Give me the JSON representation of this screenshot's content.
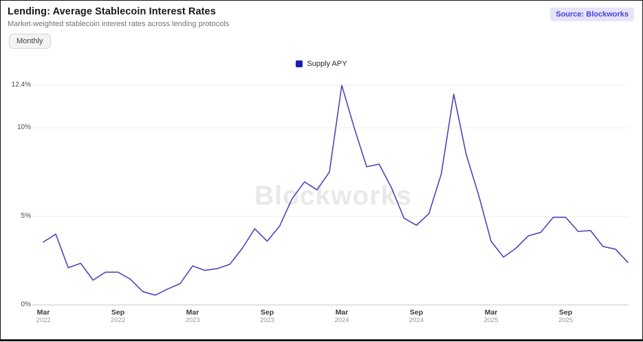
{
  "header": {
    "title": "Lending: Average Stablecoin Interest Rates",
    "subtitle": "Market-weighted stablecoin interest rates across lending protocols",
    "frequency_button": "Monthly",
    "source_badge": "Source: Blockworks"
  },
  "legend": {
    "label": "Supply APY",
    "swatch_color": "#201cb5"
  },
  "watermark": "Blockworks",
  "chart_data": {
    "type": "line",
    "title": "Lending: Average Stablecoin Interest Rates",
    "xlabel": "",
    "ylabel": "",
    "grid": "horizontal",
    "legend_position": "top-center",
    "line_color": "#4c43bd",
    "ylim": [
      0,
      12.4
    ],
    "y_ticks": [
      0,
      5,
      10,
      12.4
    ],
    "y_tick_labels": [
      "0%",
      "5%",
      "10%",
      "12.4%"
    ],
    "x": [
      "Mar 2022",
      "Apr 2022",
      "May 2022",
      "Jun 2022",
      "Jul 2022",
      "Aug 2022",
      "Sep 2022",
      "Oct 2022",
      "Nov 2022",
      "Dec 2022",
      "Jan 2023",
      "Feb 2023",
      "Mar 2023",
      "Apr 2023",
      "May 2023",
      "Jun 2023",
      "Jul 2023",
      "Aug 2023",
      "Sep 2023",
      "Oct 2023",
      "Nov 2023",
      "Dec 2023",
      "Jan 2024",
      "Feb 2024",
      "Mar 2024",
      "Apr 2024",
      "May 2024",
      "Jun 2024",
      "Jul 2024",
      "Aug 2024",
      "Sep 2024",
      "Oct 2024",
      "Nov 2024",
      "Dec 2024",
      "Jan 2025",
      "Feb 2025",
      "Mar 2025",
      "Apr 2025",
      "May 2025",
      "Jun 2025",
      "Jul 2025",
      "Aug 2025",
      "Sep 2025",
      "Oct 2025",
      "Nov 2025",
      "Dec 2025",
      "Jan 2026",
      "Feb 2026"
    ],
    "x_tick_indices": [
      0,
      6,
      12,
      18,
      24,
      30,
      36,
      42
    ],
    "series": [
      {
        "name": "Supply APY",
        "unit": "%",
        "values": [
          3.55,
          4.0,
          2.1,
          2.35,
          1.4,
          1.85,
          1.85,
          1.45,
          0.75,
          0.55,
          0.9,
          1.2,
          2.2,
          1.95,
          2.05,
          2.3,
          3.2,
          4.3,
          3.6,
          4.45,
          6.0,
          6.95,
          6.5,
          7.5,
          12.4,
          10.0,
          7.8,
          7.95,
          6.6,
          4.9,
          4.5,
          5.15,
          7.4,
          11.9,
          8.5,
          6.2,
          3.6,
          2.7,
          3.2,
          3.9,
          4.1,
          4.95,
          4.95,
          4.15,
          4.2,
          3.3,
          3.15,
          2.4
        ]
      }
    ]
  }
}
